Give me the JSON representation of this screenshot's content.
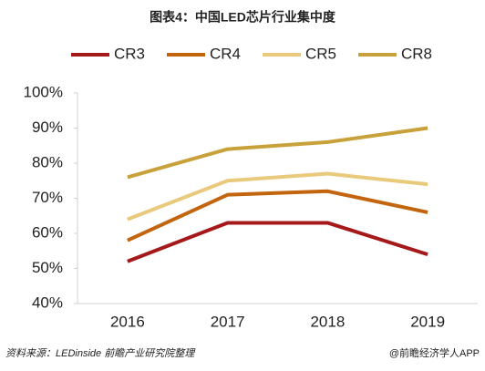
{
  "chart_data": {
    "type": "line",
    "title": "图表4：中国LED芯片行业集中度",
    "categories": [
      "2016",
      "2017",
      "2018",
      "2019"
    ],
    "series": [
      {
        "name": "CR3",
        "color": "#a5191b",
        "values": [
          52,
          63,
          63,
          54
        ]
      },
      {
        "name": "CR4",
        "color": "#c3650e",
        "values": [
          58,
          71,
          72,
          66
        ]
      },
      {
        "name": "CR5",
        "color": "#e9c97c",
        "values": [
          64,
          75,
          77,
          74
        ]
      },
      {
        "name": "CR8",
        "color": "#c9a13b",
        "values": [
          76,
          84,
          86,
          90
        ]
      }
    ],
    "ylim": [
      40,
      100
    ],
    "yticks": [
      {
        "value": 40,
        "label": "40%"
      },
      {
        "value": 50,
        "label": "50%"
      },
      {
        "value": 60,
        "label": "60%"
      },
      {
        "value": 70,
        "label": "70%"
      },
      {
        "value": 80,
        "label": "80%"
      },
      {
        "value": 90,
        "label": "90%"
      },
      {
        "value": 100,
        "label": "100%"
      }
    ],
    "grid": false,
    "source": "资料来源：LEDinside  前瞻产业研究院整理",
    "credit": "@前瞻经济学人APP"
  }
}
